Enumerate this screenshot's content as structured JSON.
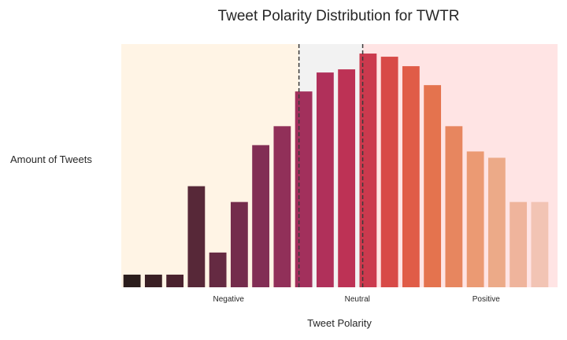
{
  "chart_data": {
    "type": "bar",
    "title": "Tweet Polarity Distribution for TWTR",
    "xlabel": "Tweet Polarity",
    "ylabel": "Amount of Tweets",
    "x_tick_labels": [
      {
        "label": "Negative",
        "position": 4.5
      },
      {
        "label": "Neutral",
        "position": 10.5
      },
      {
        "label": "Positive",
        "position": 16.5
      }
    ],
    "values": [
      2,
      2,
      2,
      16,
      5.5,
      13.5,
      22.5,
      25.5,
      31,
      34,
      34.5,
      37,
      36.5,
      35,
      32,
      25.5,
      21.5,
      20.5,
      13.5,
      13.5
    ],
    "ylim": [
      0,
      38.5
    ],
    "regions": [
      {
        "name": "negative",
        "from": -0.5,
        "to": 7.78,
        "color": "#fff4e5"
      },
      {
        "name": "neutral",
        "from": 7.78,
        "to": 10.75,
        "color": "#f2f2f2"
      },
      {
        "name": "positive",
        "from": 10.75,
        "to": 19.83,
        "color": "#ffe4e4"
      }
    ],
    "threshold_lines": [
      7.78,
      10.75
    ],
    "bar_colors": [
      "#2b1d1c",
      "#3a1f24",
      "#4a222e",
      "#572838",
      "#652a42",
      "#742c4c",
      "#822e55",
      "#913059",
      "#a2305c",
      "#b0305a",
      "#bd3255",
      "#cb3a4e",
      "#d84a47",
      "#e05c47",
      "#e4734e",
      "#e7865f",
      "#eb9a73",
      "#ecaa88",
      "#efb49c",
      "#f2c4b4"
    ],
    "grid": false,
    "legend": "none"
  }
}
